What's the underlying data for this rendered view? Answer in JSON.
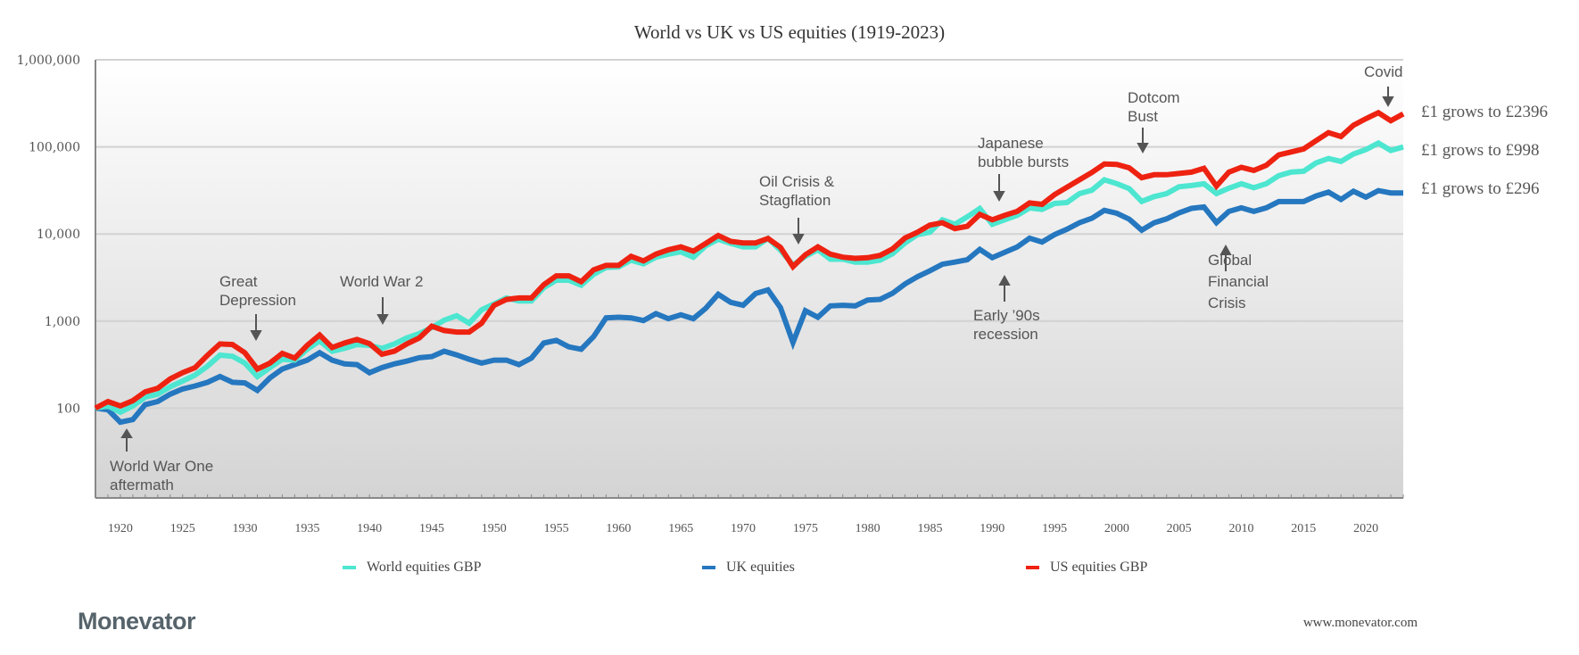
{
  "chart_data": {
    "type": "line",
    "title": "World vs UK vs US equities (1919-2023)",
    "xlabel": "",
    "ylabel": "",
    "y_scale": "log",
    "ylim": [
      10,
      1000000
    ],
    "xlim": [
      1918,
      2023
    ],
    "grid": true,
    "legend_position": "bottom",
    "y_ticks": [
      100,
      1000,
      10000,
      100000,
      1000000
    ],
    "y_tick_labels": [
      "100",
      "1,000",
      "10,000",
      "100,000",
      "1,000,000"
    ],
    "x_ticks": [
      1920,
      1925,
      1930,
      1935,
      1940,
      1945,
      1950,
      1955,
      1960,
      1965,
      1970,
      1975,
      1980,
      1985,
      1990,
      1995,
      2000,
      2005,
      2010,
      2015,
      2020
    ],
    "x_tick_labels": [
      "1920",
      "1925",
      "1930",
      "1935",
      "1940",
      "1945",
      "1950",
      "1955",
      "1960",
      "1965",
      "1970",
      "1975",
      "1980",
      "1985",
      "1990",
      "1995",
      "2000",
      "2005",
      "2010",
      "2015",
      "2020"
    ],
    "x": [
      1918,
      1919,
      1920,
      1921,
      1922,
      1923,
      1924,
      1925,
      1926,
      1927,
      1928,
      1929,
      1930,
      1931,
      1932,
      1933,
      1934,
      1935,
      1936,
      1937,
      1938,
      1939,
      1940,
      1941,
      1942,
      1943,
      1944,
      1945,
      1946,
      1947,
      1948,
      1949,
      1950,
      1951,
      1952,
      1953,
      1954,
      1955,
      1956,
      1957,
      1958,
      1959,
      1960,
      1961,
      1962,
      1963,
      1964,
      1965,
      1966,
      1967,
      1968,
      1969,
      1970,
      1971,
      1972,
      1973,
      1974,
      1975,
      1976,
      1977,
      1978,
      1979,
      1980,
      1981,
      1982,
      1983,
      1984,
      1985,
      1986,
      1987,
      1988,
      1989,
      1990,
      1991,
      1992,
      1993,
      1994,
      1995,
      1996,
      1997,
      1998,
      1999,
      2000,
      2001,
      2002,
      2003,
      2004,
      2005,
      2006,
      2007,
      2008,
      2009,
      2010,
      2011,
      2012,
      2013,
      2014,
      2015,
      2016,
      2017,
      2018,
      2019,
      2020,
      2021,
      2022,
      2023
    ],
    "series": [
      {
        "name": "World equities GBP",
        "color": "#4de6d0",
        "end_label": "£1 grows to £998",
        "values": [
          100,
          106,
          90,
          106,
          134,
          145,
          176,
          205,
          240,
          304,
          406,
          394,
          329,
          231,
          292,
          364,
          356,
          475,
          592,
          450,
          486,
          538,
          526,
          486,
          547,
          640,
          719,
          841,
          1023,
          1151,
          946,
          1346,
          1574,
          1841,
          1702,
          1702,
          2421,
          2944,
          2944,
          2582,
          3443,
          4130,
          4188,
          5000,
          4545,
          5420,
          5861,
          6237,
          5420,
          7305,
          8687,
          7780,
          7125,
          7125,
          8892,
          6487,
          4385,
          5546,
          6593,
          5129,
          5129,
          4742,
          4742,
          5012,
          5950,
          7900,
          9843,
          10471,
          14555,
          12942,
          15740,
          19634,
          12942,
          14555,
          16368,
          19907,
          19143,
          22387,
          22962,
          29040,
          31842,
          41879,
          37844,
          33113,
          23659,
          26853,
          29040,
          34800,
          35975,
          37757,
          29107,
          33574,
          37757,
          34045,
          37757,
          46666,
          51286,
          52480,
          65464,
          73621,
          68077,
          82794,
          93111,
          110700,
          91000,
          99800
        ]
      },
      {
        "name": "UK equities",
        "color": "#2577bf",
        "end_label": "£1 grows to £296",
        "values": [
          100,
          96,
          69,
          74,
          110,
          119,
          145,
          166,
          180,
          198,
          231,
          198,
          195,
          160,
          222,
          281,
          316,
          356,
          433,
          356,
          322,
          316,
          255,
          292,
          322,
          347,
          379,
          391,
          450,
          409,
          364,
          329,
          356,
          356,
          316,
          376,
          560,
          601,
          506,
          475,
          665,
          1089,
          1107,
          1089,
          1015,
          1216,
          1065,
          1180,
          1065,
          1402,
          2028,
          1640,
          1517,
          2075,
          2280,
          1426,
          568,
          1316,
          1107,
          1493,
          1517,
          1493,
          1746,
          1774,
          2090,
          2670,
          3236,
          3784,
          4498,
          4753,
          5058,
          6653,
          5346,
          6152,
          7079,
          8954,
          8093,
          9843,
          11325,
          13463,
          15136,
          18706,
          17298,
          14791,
          11066,
          13463,
          14893,
          17500,
          19680,
          20460,
          13490,
          18150,
          19950,
          18150,
          19950,
          23550,
          23550,
          23550,
          27350,
          30270,
          24890,
          30970,
          26490,
          31480,
          29600,
          29600
        ]
      },
      {
        "name": "US equities GBP",
        "color": "#ee2211",
        "end_label": "£1 grows to £2396",
        "values": [
          100,
          119,
          106,
          122,
          154,
          169,
          217,
          256,
          292,
          406,
          547,
          538,
          433,
          281,
          329,
          426,
          376,
          526,
          692,
          498,
          560,
          615,
          550,
          416,
          450,
          547,
          640,
          875,
          778,
          748,
          748,
          946,
          1514,
          1770,
          1841,
          1841,
          2618,
          3311,
          3311,
          2831,
          3873,
          4357,
          4357,
          5530,
          4910,
          5861,
          6593,
          7125,
          6339,
          7780,
          9616,
          8219,
          7907,
          7907,
          8892,
          7015,
          4216,
          5769,
          7125,
          5861,
          5420,
          5248,
          5333,
          5675,
          6750,
          9000,
          10471,
          12647,
          13463,
          11508,
          12250,
          16749,
          14555,
          16368,
          18155,
          22751,
          21878,
          28314,
          34435,
          41879,
          50933,
          63533,
          62950,
          57411,
          44260,
          47863,
          47863,
          49500,
          51286,
          56754,
          35400,
          51286,
          58210,
          53700,
          61376,
          80910,
          87500,
          94650,
          118000,
          145900,
          131500,
          177500,
          211000,
          246700,
          199500,
          239600
        ]
      }
    ],
    "annotations": [
      {
        "text": "World War One aftermath",
        "lines": [
          "World War One",
          "aftermath"
        ],
        "arrow": "up"
      },
      {
        "text": "Great Depression",
        "lines": [
          "Great",
          "Depression"
        ],
        "arrow": "down"
      },
      {
        "text": "World War 2",
        "lines": [
          "World War 2"
        ],
        "arrow": "down"
      },
      {
        "text": "Oil Crisis & Stagflation",
        "lines": [
          "Oil Crisis &",
          "Stagflation"
        ],
        "arrow": "down"
      },
      {
        "text": "Japanese bubble bursts",
        "lines": [
          "Japanese",
          "bubble bursts"
        ],
        "arrow": "down"
      },
      {
        "text": "Early ’90s recession",
        "lines": [
          "Early ’90s",
          "recession"
        ],
        "arrow": "up"
      },
      {
        "text": "Dotcom Bust",
        "lines": [
          "Dotcom",
          "Bust"
        ],
        "arrow": "down"
      },
      {
        "text": "Global Financial Crisis",
        "lines": [
          "Global",
          "Financial",
          "Crisis"
        ],
        "arrow": "up"
      },
      {
        "text": "Covid",
        "lines": [
          "Covid"
        ],
        "arrow": "down"
      }
    ]
  },
  "branding": {
    "logo": "Monevator",
    "website": "www.monevator.com"
  }
}
